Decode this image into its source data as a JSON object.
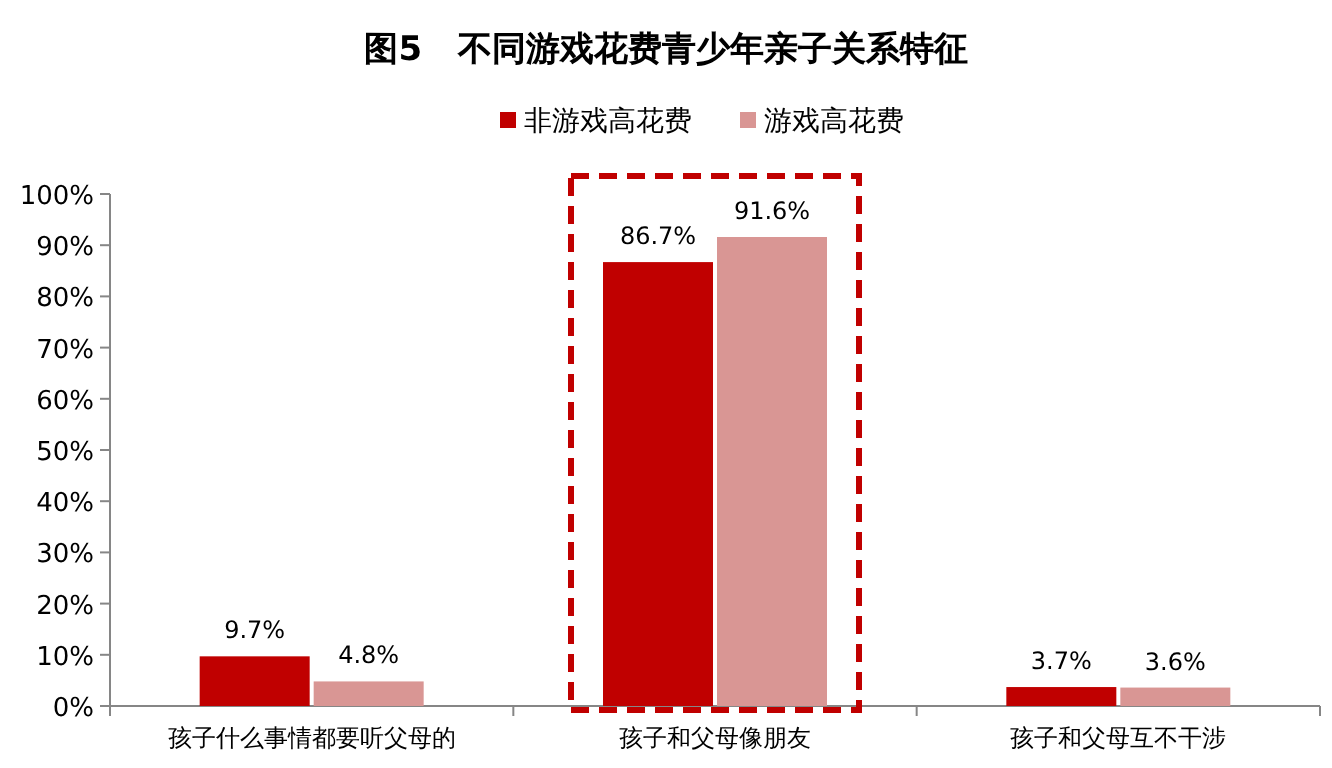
{
  "chart_data": {
    "type": "bar",
    "title": "图5   不同游戏花费青少年亲子关系特征",
    "categories": [
      "孩子什么事情都要听父母的",
      "孩子和父母像朋友",
      "孩子和父母互不干涉"
    ],
    "series": [
      {
        "name": "非游戏高花费",
        "color": "#c00000",
        "values": [
          9.7,
          86.7,
          3.7
        ],
        "value_labels": [
          "9.7%",
          "86.7%",
          "3.7%"
        ]
      },
      {
        "name": "游戏高花费",
        "color": "#d99694",
        "values": [
          4.8,
          91.6,
          3.6
        ],
        "value_labels": [
          "4.8%",
          "91.6%",
          "3.6%"
        ]
      }
    ],
    "ylim": [
      0,
      100
    ],
    "yticks": [
      {
        "value": 0,
        "label": "0%"
      },
      {
        "value": 10,
        "label": "10%"
      },
      {
        "value": 20,
        "label": "20%"
      },
      {
        "value": 30,
        "label": "30%"
      },
      {
        "value": 40,
        "label": "40%"
      },
      {
        "value": 50,
        "label": "50%"
      },
      {
        "value": 60,
        "label": "60%"
      },
      {
        "value": 70,
        "label": "70%"
      },
      {
        "value": 80,
        "label": "80%"
      },
      {
        "value": 90,
        "label": "90%"
      },
      {
        "value": 100,
        "label": "100%"
      }
    ],
    "legend": "top",
    "grid": false
  }
}
